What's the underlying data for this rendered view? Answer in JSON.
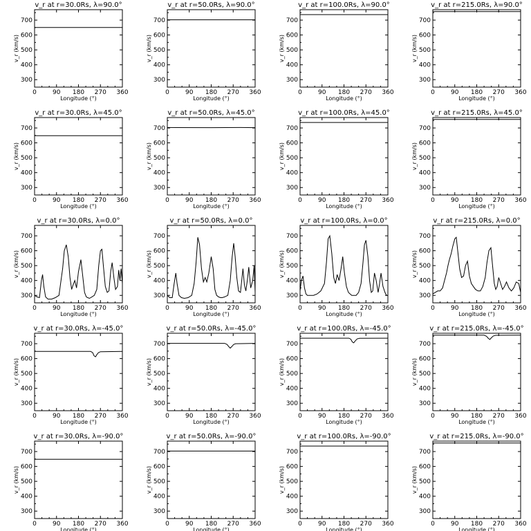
{
  "chart_data": {
    "type": "line",
    "grid": false,
    "xlabel": "Longitude (°)",
    "ylabel": "v_r (km/s)",
    "xlim": [
      0,
      360
    ],
    "ylim": [
      250,
      770
    ],
    "xticks": [
      0,
      90,
      180,
      270,
      360
    ],
    "yticks": [
      300,
      400,
      500,
      600,
      700
    ],
    "line_color": "#000000",
    "radii": [
      "30.0",
      "50.0",
      "100.0",
      "215.0"
    ],
    "latitudes": [
      "90.0",
      "45.0",
      "0.0",
      "-45.0",
      "-90.0"
    ],
    "panels": [
      {
        "title": "v_r at r=30.0Rs, λ=90.0°",
        "x": [
          0,
          360
        ],
        "y": [
          650,
          650
        ]
      },
      {
        "title": "v_r at r=50.0Rs, λ=90.0°",
        "x": [
          0,
          360
        ],
        "y": [
          702,
          702
        ]
      },
      {
        "title": "v_r at r=100.0Rs, λ=90.0°",
        "x": [
          0,
          360
        ],
        "y": [
          737,
          737
        ]
      },
      {
        "title": "v_r at r=215.0Rs, λ=90.0°",
        "x": [
          0,
          360
        ],
        "y": [
          757,
          757
        ]
      },
      {
        "title": "v_r at r=30.0Rs, λ=45.0°",
        "x": [
          0,
          360
        ],
        "y": [
          648,
          648
        ]
      },
      {
        "title": "v_r at r=50.0Rs, λ=45.0°",
        "x": [
          0,
          180,
          300,
          360
        ],
        "y": [
          703,
          702,
          703,
          702
        ]
      },
      {
        "title": "v_r at r=100.0Rs, λ=45.0°",
        "x": [
          0,
          360
        ],
        "y": [
          737,
          737
        ]
      },
      {
        "title": "v_r at r=215.0Rs, λ=45.0°",
        "x": [
          0,
          360
        ],
        "y": [
          757,
          757
        ]
      },
      {
        "title": "v_r at r=30.0Rs, λ=0.0°",
        "x": [
          0,
          10,
          20,
          28,
          33,
          38,
          45,
          55,
          70,
          85,
          100,
          115,
          122,
          130,
          138,
          145,
          152,
          158,
          165,
          172,
          180,
          190,
          198,
          205,
          212,
          218,
          225,
          235,
          245,
          255,
          263,
          270,
          276,
          282,
          290,
          298,
          305,
          312,
          318,
          325,
          332,
          340,
          345,
          350,
          355,
          360
        ],
        "y": [
          300,
          290,
          285,
          400,
          440,
          360,
          290,
          275,
          275,
          285,
          300,
          480,
          600,
          640,
          560,
          420,
          340,
          370,
          400,
          350,
          460,
          540,
          420,
          320,
          290,
          285,
          280,
          290,
          300,
          340,
          500,
          600,
          610,
          500,
          360,
          320,
          330,
          460,
          520,
          420,
          340,
          360,
          470,
          400,
          480,
          380
        ]
      },
      {
        "title": "v_r at r=50.0Rs, λ=0.0°",
        "x": [
          0,
          10,
          20,
          28,
          35,
          40,
          48,
          58,
          70,
          85,
          100,
          110,
          118,
          125,
          132,
          140,
          148,
          155,
          162,
          170,
          180,
          188,
          195,
          202,
          210,
          218,
          225,
          235,
          248,
          258,
          266,
          272,
          278,
          285,
          292,
          300,
          305,
          310,
          316,
          322,
          328,
          334,
          342,
          350,
          356,
          360
        ],
        "y": [
          300,
          285,
          285,
          380,
          450,
          380,
          300,
          285,
          280,
          285,
          300,
          380,
          520,
          690,
          640,
          480,
          390,
          420,
          390,
          450,
          560,
          480,
          340,
          300,
          290,
          285,
          285,
          290,
          300,
          400,
          560,
          650,
          560,
          420,
          330,
          320,
          400,
          480,
          370,
          330,
          400,
          490,
          350,
          400,
          500,
          320
        ]
      },
      {
        "title": "v_r at r=100.0Rs, λ=0.0°",
        "x": [
          0,
          5,
          12,
          18,
          24,
          30,
          40,
          55,
          70,
          85,
          100,
          108,
          115,
          122,
          130,
          138,
          145,
          152,
          160,
          168,
          175,
          182,
          190,
          198,
          205,
          212,
          220,
          230,
          240,
          250,
          258,
          264,
          270,
          278,
          285,
          292,
          298,
          305,
          312,
          320,
          326,
          332,
          340,
          348,
          354,
          360
        ],
        "y": [
          330,
          400,
          430,
          350,
          310,
          300,
          300,
          300,
          310,
          330,
          380,
          520,
          680,
          700,
          580,
          420,
          380,
          440,
          400,
          480,
          560,
          450,
          360,
          320,
          310,
          300,
          300,
          300,
          320,
          380,
          520,
          640,
          670,
          560,
          400,
          320,
          330,
          450,
          400,
          320,
          380,
          450,
          360,
          320,
          300,
          300
        ]
      },
      {
        "title": "v_r at r=215.0Rs, λ=0.0°",
        "x": [
          0,
          10,
          20,
          30,
          40,
          48,
          56,
          62,
          68,
          75,
          82,
          90,
          96,
          102,
          110,
          118,
          126,
          134,
          142,
          150,
          158,
          166,
          175,
          185,
          195,
          205,
          215,
          222,
          230,
          238,
          245,
          252,
          258,
          264,
          270,
          278,
          286,
          294,
          302,
          312,
          322,
          332,
          342,
          352,
          360
        ],
        "y": [
          310,
          320,
          330,
          330,
          350,
          400,
          450,
          500,
          540,
          580,
          630,
          680,
          690,
          600,
          480,
          420,
          430,
          500,
          530,
          430,
          380,
          360,
          340,
          330,
          330,
          360,
          420,
          520,
          600,
          620,
          500,
          380,
          340,
          360,
          420,
          380,
          340,
          360,
          390,
          350,
          330,
          350,
          390,
          380,
          320
        ]
      },
      {
        "title": "v_r at r=30.0Rs, λ=-45.0°",
        "x": [
          0,
          230,
          238,
          244,
          250,
          256,
          262,
          270,
          360
        ],
        "y": [
          648,
          648,
          640,
          618,
          612,
          628,
          640,
          646,
          648
        ]
      },
      {
        "title": "v_r at r=50.0Rs, λ=-45.0°",
        "x": [
          0,
          235,
          245,
          252,
          258,
          264,
          272,
          280,
          360
        ],
        "y": [
          702,
          702,
          695,
          680,
          670,
          680,
          695,
          700,
          702
        ]
      },
      {
        "title": "v_r at r=100.0Rs, λ=-45.0°",
        "x": [
          0,
          200,
          208,
          214,
          220,
          226,
          234,
          244,
          360
        ],
        "y": [
          737,
          737,
          730,
          712,
          706,
          718,
          732,
          736,
          737
        ]
      },
      {
        "title": "v_r at r=215.0Rs, λ=-45.0°",
        "x": [
          0,
          210,
          220,
          228,
          234,
          240,
          248,
          258,
          360
        ],
        "y": [
          757,
          757,
          750,
          735,
          728,
          740,
          752,
          756,
          757
        ]
      },
      {
        "title": "v_r at r=30.0Rs, λ=-90.0°",
        "x": [
          0,
          360
        ],
        "y": [
          648,
          648
        ]
      },
      {
        "title": "v_r at r=50.0Rs, λ=-90.0°",
        "x": [
          0,
          360
        ],
        "y": [
          703,
          703
        ]
      },
      {
        "title": "v_r at r=100.0Rs, λ=-90.0°",
        "x": [
          0,
          360
        ],
        "y": [
          737,
          737
        ]
      },
      {
        "title": "v_r at r=215.0Rs, λ=-90.0°",
        "x": [
          0,
          360
        ],
        "y": [
          757,
          757
        ]
      }
    ]
  }
}
